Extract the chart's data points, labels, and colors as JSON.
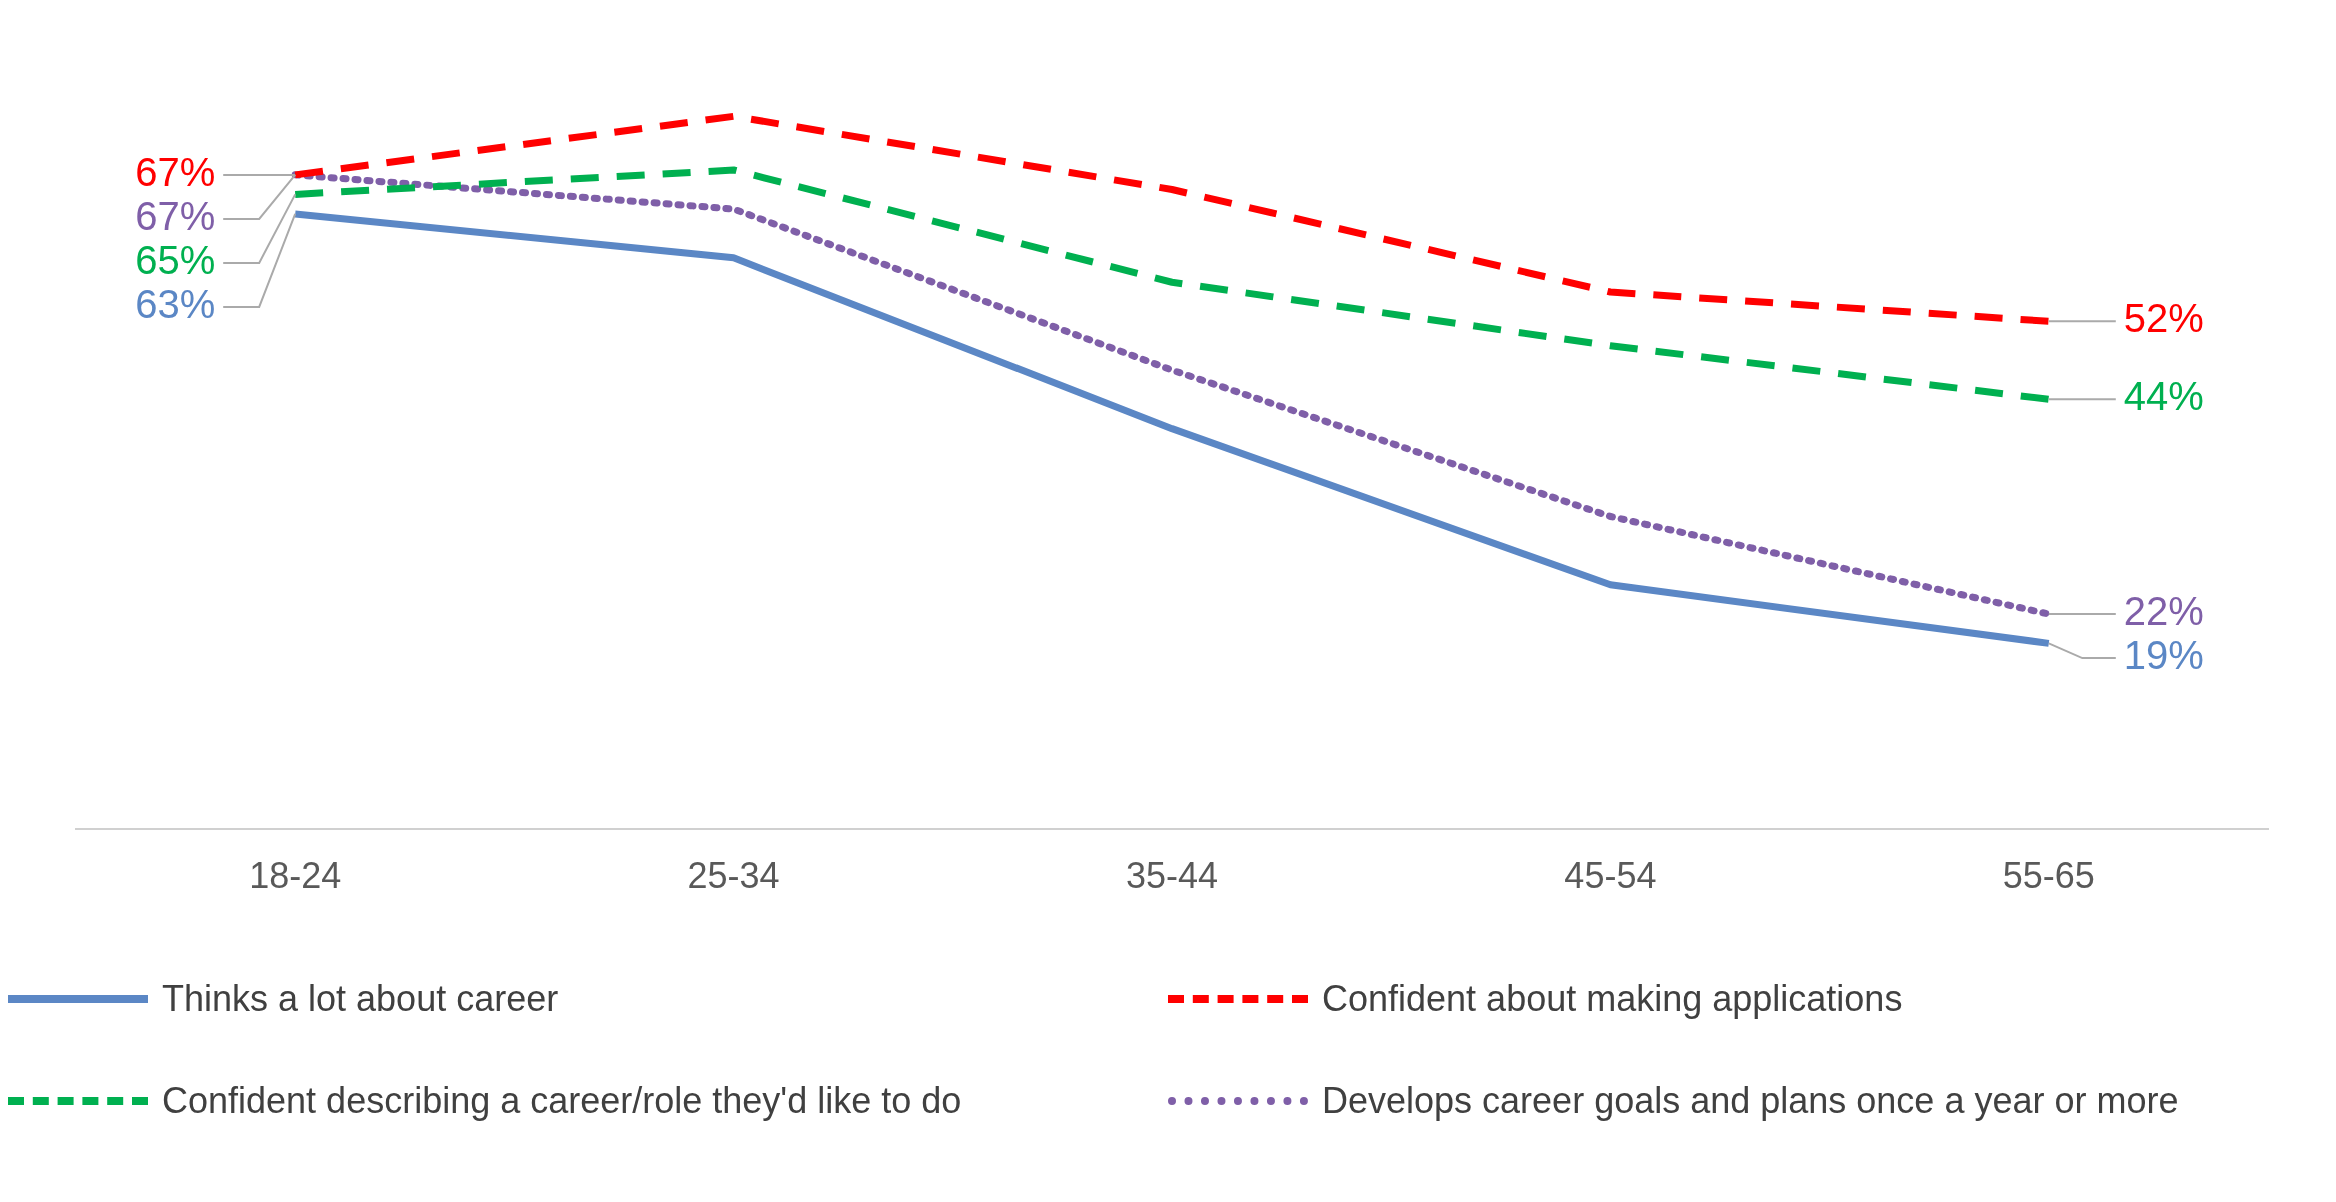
{
  "chart_data": {
    "type": "line",
    "relative": false,
    "categories": [
      "18-24",
      "25-34",
      "35-44",
      "45-54",
      "55-65"
    ],
    "legend": "bottom",
    "grid": false,
    "series": [
      {
        "name": "Thinks a lot about career",
        "color": "#5b87c5",
        "line_style": "solid",
        "values": [
          63,
          58.5,
          41,
          25,
          19
        ],
        "value_labels": [
          "63%",
          null,
          null,
          null,
          "19%"
        ]
      },
      {
        "name": "Confident about making applications",
        "color": "#ff0000",
        "line_style": "dashed",
        "values": [
          67,
          73,
          65.5,
          55,
          52
        ],
        "value_labels": [
          "67%",
          null,
          null,
          null,
          "52%"
        ]
      },
      {
        "name": "Confident describing a career/role they'd like to do",
        "color": "#00b050",
        "line_style": "dashed",
        "values": [
          65,
          67.5,
          56,
          49.5,
          44
        ],
        "value_labels": [
          "65%",
          null,
          null,
          null,
          "44%"
        ]
      },
      {
        "name": "Develops career goals and plans once a year or more",
        "color": "#7f5fa8",
        "line_style": "dotted",
        "values": [
          67,
          63.5,
          47,
          32,
          22
        ],
        "value_labels": [
          "67%",
          null,
          null,
          null,
          "22%"
        ]
      }
    ]
  }
}
